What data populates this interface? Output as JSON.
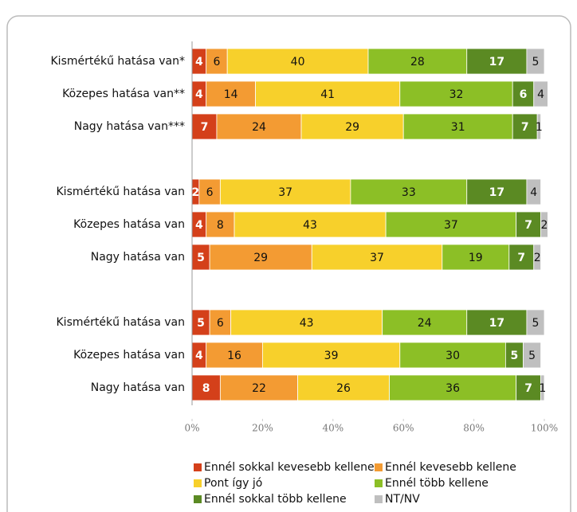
{
  "chart_data": {
    "type": "stacked_barh",
    "categories": [
      "Kismértékű hatása van*",
      "Közepes hatása van**",
      "Nagy hatása van***",
      null,
      "Kismértékű hatása van",
      "Közepes hatása van",
      "Nagy hatása van",
      null,
      "Kismértékű hatása van",
      "Közepes hatása van",
      "Nagy hatása van"
    ],
    "series": [
      {
        "name": "Ennél sokkal kevesebb kellene",
        "color": "#d4401a",
        "values": [
          4,
          4,
          7,
          null,
          2,
          4,
          5,
          null,
          5,
          4,
          8
        ]
      },
      {
        "name": "Ennél kevesebb kellene",
        "color": "#f39b33",
        "values": [
          6,
          14,
          24,
          null,
          6,
          8,
          29,
          null,
          6,
          16,
          22
        ]
      },
      {
        "name": "Pont így jó",
        "color": "#f7d02b",
        "values": [
          40,
          41,
          29,
          null,
          37,
          43,
          37,
          null,
          43,
          39,
          26
        ]
      },
      {
        "name": "Ennél több kellene",
        "color": "#8cbf26",
        "values": [
          28,
          32,
          31,
          null,
          33,
          37,
          19,
          null,
          24,
          30,
          36
        ]
      },
      {
        "name": "Ennél sokkal több kellene",
        "color": "#5b8a23",
        "values": [
          17,
          6,
          7,
          null,
          17,
          7,
          7,
          null,
          17,
          5,
          7
        ]
      },
      {
        "name": "NT/NV",
        "color": "#bfbfbf",
        "values": [
          5,
          4,
          1,
          null,
          4,
          2,
          2,
          null,
          5,
          5,
          1
        ]
      }
    ],
    "xlim": [
      0,
      100
    ],
    "xticks": [
      {
        "value": 0,
        "label": "0%"
      },
      {
        "value": 20,
        "label": "20%"
      },
      {
        "value": 40,
        "label": "40%"
      },
      {
        "value": 60,
        "label": "60%"
      },
      {
        "value": 80,
        "label": "80%"
      },
      {
        "value": 100,
        "label": "100%"
      }
    ],
    "grid": false
  }
}
